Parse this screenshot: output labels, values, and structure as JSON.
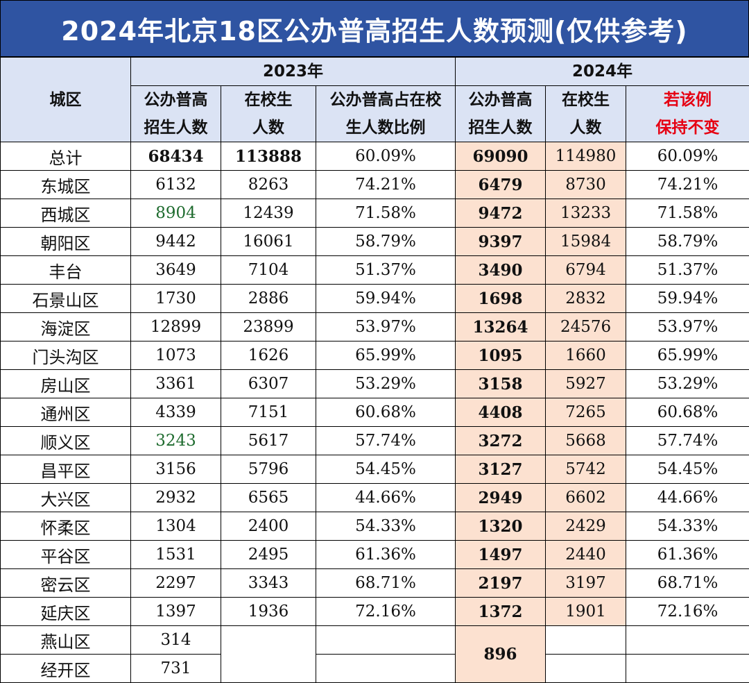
{
  "title": "2024年北京18区公办普高招生人数预测(仅供参考)",
  "header": {
    "district": "城区",
    "y2023": "2023年",
    "y2024": "2024年",
    "c2023_enroll": [
      "公办普高",
      "招生人数"
    ],
    "c2023_students": [
      "在校生",
      "人数"
    ],
    "c2023_ratio": [
      "公办普高占在校",
      "生人数比例"
    ],
    "c2024_enroll": [
      "公办普高",
      "招生人数"
    ],
    "c2024_students": [
      "在校生",
      "人数"
    ],
    "c2024_ratio": [
      "若该例",
      "保持不变"
    ]
  },
  "colors": {
    "title_bg": "#2f54a2",
    "header_bg": "#dbe3f4",
    "highlight_bg": "#fce1d0",
    "red_text": "#e60012",
    "green_text": "#1e6b2e"
  },
  "rows": [
    {
      "name": "总计",
      "e23": "68434",
      "s23": "113888",
      "r23": "60.09%",
      "e24": "69090",
      "s24": "114980",
      "r24": "60.09%"
    },
    {
      "name": "东城区",
      "e23": "6132",
      "s23": "8263",
      "r23": "74.21%",
      "e24": "6479",
      "s24": "8730",
      "r24": "74.21%"
    },
    {
      "name": "西城区",
      "e23": "8904",
      "s23": "12439",
      "r23": "71.58%",
      "e24": "9472",
      "s24": "13233",
      "r24": "71.58%"
    },
    {
      "name": "朝阳区",
      "e23": "9442",
      "s23": "16061",
      "r23": "58.79%",
      "e24": "9397",
      "s24": "15984",
      "r24": "58.79%"
    },
    {
      "name": "丰台",
      "e23": "3649",
      "s23": "7104",
      "r23": "51.37%",
      "e24": "3490",
      "s24": "6794",
      "r24": "51.37%"
    },
    {
      "name": "石景山区",
      "e23": "1730",
      "s23": "2886",
      "r23": "59.94%",
      "e24": "1698",
      "s24": "2832",
      "r24": "59.94%"
    },
    {
      "name": "海淀区",
      "e23": "12899",
      "s23": "23899",
      "r23": "53.97%",
      "e24": "13264",
      "s24": "24576",
      "r24": "53.97%"
    },
    {
      "name": "门头沟区",
      "e23": "1073",
      "s23": "1626",
      "r23": "65.99%",
      "e24": "1095",
      "s24": "1660",
      "r24": "65.99%"
    },
    {
      "name": "房山区",
      "e23": "3361",
      "s23": "6307",
      "r23": "53.29%",
      "e24": "3158",
      "s24": "5927",
      "r24": "53.29%"
    },
    {
      "name": "通州区",
      "e23": "4339",
      "s23": "7151",
      "r23": "60.68%",
      "e24": "4408",
      "s24": "7265",
      "r24": "60.68%"
    },
    {
      "name": "顺义区",
      "e23": "3243",
      "s23": "5617",
      "r23": "57.74%",
      "e24": "3272",
      "s24": "5668",
      "r24": "57.74%"
    },
    {
      "name": "昌平区",
      "e23": "3156",
      "s23": "5796",
      "r23": "54.45%",
      "e24": "3127",
      "s24": "5742",
      "r24": "54.45%"
    },
    {
      "name": "大兴区",
      "e23": "2932",
      "s23": "6565",
      "r23": "44.66%",
      "e24": "2949",
      "s24": "6602",
      "r24": "44.66%"
    },
    {
      "name": "怀柔区",
      "e23": "1304",
      "s23": "2400",
      "r23": "54.33%",
      "e24": "1320",
      "s24": "2429",
      "r24": "54.33%"
    },
    {
      "name": "平谷区",
      "e23": "1531",
      "s23": "2495",
      "r23": "61.36%",
      "e24": "1497",
      "s24": "2440",
      "r24": "61.36%"
    },
    {
      "name": "密云区",
      "e23": "2297",
      "s23": "3343",
      "r23": "68.71%",
      "e24": "2197",
      "s24": "3197",
      "r24": "68.71%"
    },
    {
      "name": "延庆区",
      "e23": "1397",
      "s23": "1936",
      "r23": "72.16%",
      "e24": "1372",
      "s24": "1901",
      "r24": "72.16%"
    }
  ],
  "tail": {
    "yanshan_name": "燕山区",
    "yanshan_e23": "314",
    "jingkai_name": "经开区",
    "jingkai_e23": "731",
    "combined_e24": "896"
  }
}
